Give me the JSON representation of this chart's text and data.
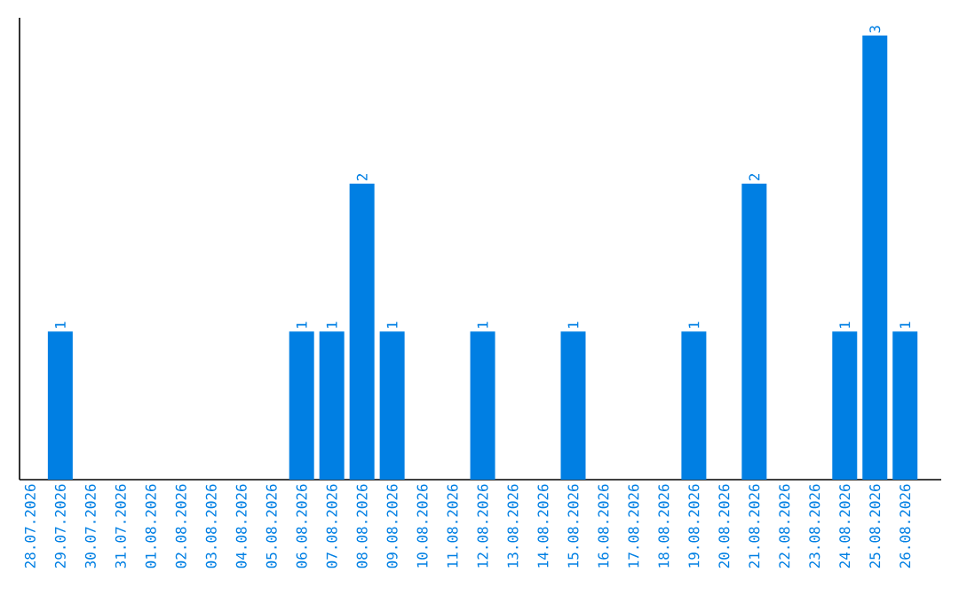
{
  "chart_data": {
    "type": "bar",
    "color": "#007fe3",
    "categories": [
      "28.07.2026",
      "29.07.2026",
      "30.07.2026",
      "31.07.2026",
      "01.08.2026",
      "02.08.2026",
      "03.08.2026",
      "04.08.2026",
      "05.08.2026",
      "06.08.2026",
      "07.08.2026",
      "08.08.2026",
      "09.08.2026",
      "10.08.2026",
      "11.08.2026",
      "12.08.2026",
      "13.08.2026",
      "14.08.2026",
      "15.08.2026",
      "16.08.2026",
      "17.08.2026",
      "18.08.2026",
      "19.08.2026",
      "20.08.2026",
      "21.08.2026",
      "22.08.2026",
      "23.08.2026",
      "24.08.2026",
      "25.08.2026",
      "26.08.2026"
    ],
    "values": [
      0,
      1,
      0,
      0,
      0,
      0,
      0,
      0,
      0,
      1,
      1,
      2,
      1,
      0,
      0,
      1,
      0,
      0,
      1,
      0,
      0,
      0,
      1,
      0,
      2,
      0,
      0,
      1,
      3,
      1
    ],
    "value_labels": [
      null,
      "1",
      null,
      null,
      null,
      null,
      null,
      null,
      null,
      "1",
      "1",
      "2",
      "1",
      null,
      null,
      "1",
      null,
      null,
      "1",
      null,
      null,
      null,
      "1",
      null,
      "2",
      null,
      null,
      "1",
      "3",
      "1"
    ],
    "relative": false
  }
}
